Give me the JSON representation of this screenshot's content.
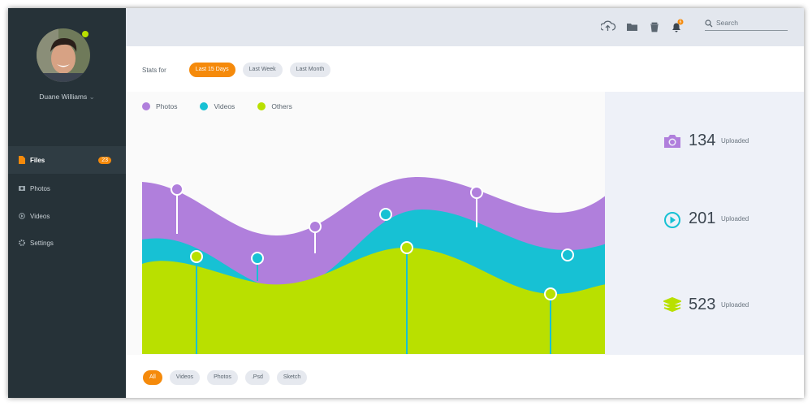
{
  "sidebar": {
    "user_name": "Duane Williams",
    "menu": [
      {
        "label": "Files",
        "badge": "23"
      },
      {
        "label": "Photos"
      },
      {
        "label": "Videos"
      },
      {
        "label": "Settings"
      }
    ]
  },
  "topbar": {
    "notification_count": "6",
    "search_placeholder": "Search"
  },
  "filters": {
    "label": "Stats for",
    "options": [
      "Last 15 Days",
      "Last Week",
      "Last Month"
    ],
    "active": 0
  },
  "legend": [
    "Photos",
    "Videos",
    "Others"
  ],
  "stats": [
    {
      "value": "134",
      "label": "Uploaded"
    },
    {
      "value": "201",
      "label": "Uploaded"
    },
    {
      "value": "523",
      "label": "Uploaded"
    }
  ],
  "bottom_filters": {
    "options": [
      "All",
      "Videos",
      "Photos",
      ".Psd",
      "Sketch"
    ],
    "active": 0
  }
}
